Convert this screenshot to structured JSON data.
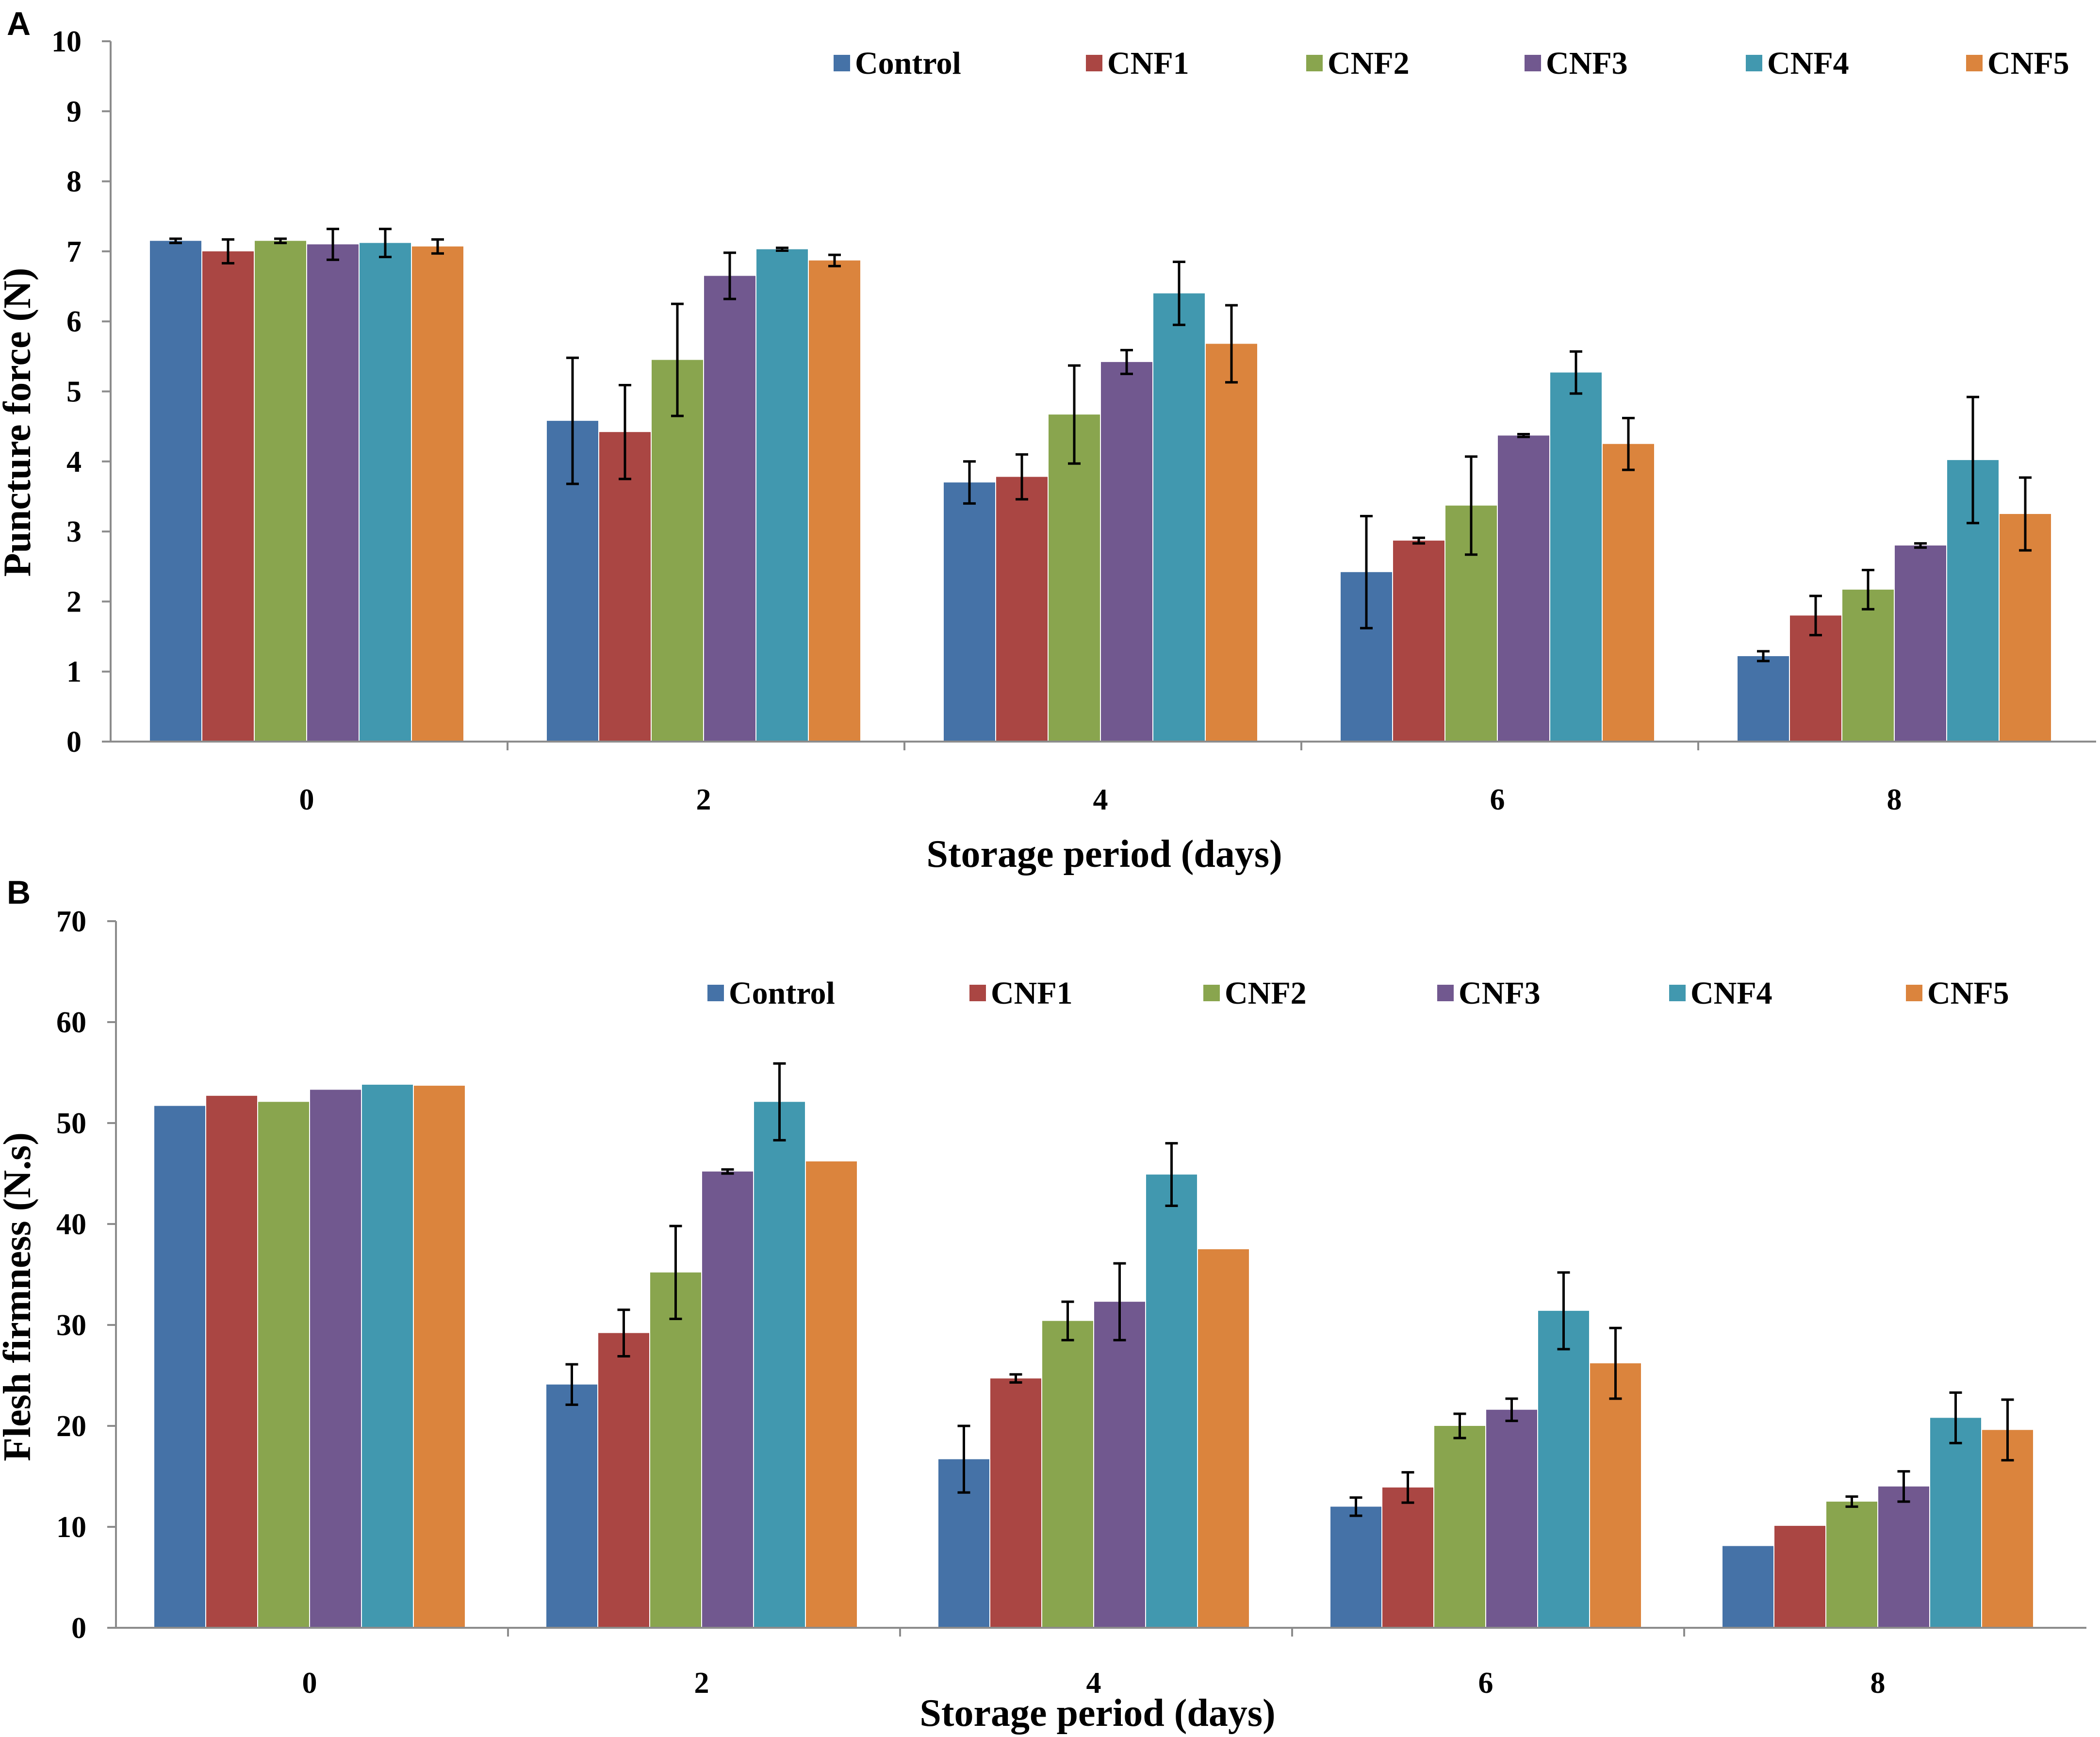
{
  "series_colors": {
    "Control": "#4572a7",
    "CNF1": "#aa4643",
    "CNF2": "#89a54e",
    "CNF3": "#71588f",
    "CNF4": "#4198af",
    "CNF5": "#db843d"
  },
  "chart_data": [
    {
      "panel": "A",
      "type": "bar",
      "ylabel": "Puncture force (N)",
      "xlabel": "Storage period (days)",
      "categories": [
        "0",
        "2",
        "4",
        "6",
        "8"
      ],
      "ylim": [
        0,
        10
      ],
      "yticks": [
        0,
        1,
        2,
        3,
        4,
        5,
        6,
        7,
        8,
        9,
        10
      ],
      "legend_position": "top-right",
      "series": [
        {
          "name": "Control",
          "values": [
            7.15,
            4.58,
            3.7,
            2.42,
            1.22
          ],
          "errors": [
            0.03,
            0.9,
            0.3,
            0.8,
            0.07
          ]
        },
        {
          "name": "CNF1",
          "values": [
            7.0,
            4.42,
            3.78,
            2.87,
            1.8
          ],
          "errors": [
            0.17,
            0.67,
            0.32,
            0.04,
            0.28
          ]
        },
        {
          "name": "CNF2",
          "values": [
            7.15,
            5.45,
            4.67,
            3.37,
            2.17
          ],
          "errors": [
            0.03,
            0.8,
            0.7,
            0.7,
            0.28
          ]
        },
        {
          "name": "CNF3",
          "values": [
            7.1,
            6.65,
            5.42,
            4.37,
            2.8
          ],
          "errors": [
            0.22,
            0.33,
            0.17,
            0.02,
            0.03
          ]
        },
        {
          "name": "CNF4",
          "values": [
            7.12,
            7.03,
            6.4,
            5.27,
            4.02
          ],
          "errors": [
            0.2,
            0.02,
            0.45,
            0.3,
            0.9
          ]
        },
        {
          "name": "CNF5",
          "values": [
            7.07,
            6.87,
            5.68,
            4.25,
            3.25
          ],
          "errors": [
            0.1,
            0.08,
            0.55,
            0.37,
            0.52
          ]
        }
      ]
    },
    {
      "panel": "B",
      "type": "bar",
      "ylabel": "Flesh firmness  (N.s)",
      "xlabel": "Storage period (days)",
      "categories": [
        "0",
        "2",
        "4",
        "6",
        "8"
      ],
      "ylim": [
        0,
        70
      ],
      "yticks": [
        0,
        10,
        20,
        30,
        40,
        50,
        60,
        70
      ],
      "legend_position": "top",
      "series": [
        {
          "name": "Control",
          "values": [
            51.7,
            24.1,
            16.7,
            12.0,
            8.1
          ],
          "errors": [
            0,
            2.0,
            3.3,
            0.9,
            0
          ]
        },
        {
          "name": "CNF1",
          "values": [
            52.7,
            29.2,
            24.7,
            13.9,
            10.1
          ],
          "errors": [
            0,
            2.3,
            0.4,
            1.5,
            0
          ]
        },
        {
          "name": "CNF2",
          "values": [
            52.1,
            35.2,
            30.4,
            20.0,
            12.5
          ],
          "errors": [
            0,
            4.6,
            1.9,
            1.2,
            0.5
          ]
        },
        {
          "name": "CNF3",
          "values": [
            53.3,
            45.2,
            32.3,
            21.6,
            14.0
          ],
          "errors": [
            0,
            0.2,
            3.8,
            1.1,
            1.5
          ]
        },
        {
          "name": "CNF4",
          "values": [
            53.8,
            52.1,
            44.9,
            31.4,
            20.8
          ],
          "errors": [
            0,
            3.8,
            3.1,
            3.8,
            2.5
          ]
        },
        {
          "name": "CNF5",
          "values": [
            53.7,
            46.2,
            37.5,
            26.2,
            19.6
          ],
          "errors": [
            0,
            0,
            0,
            3.5,
            3.0
          ]
        }
      ]
    }
  ]
}
